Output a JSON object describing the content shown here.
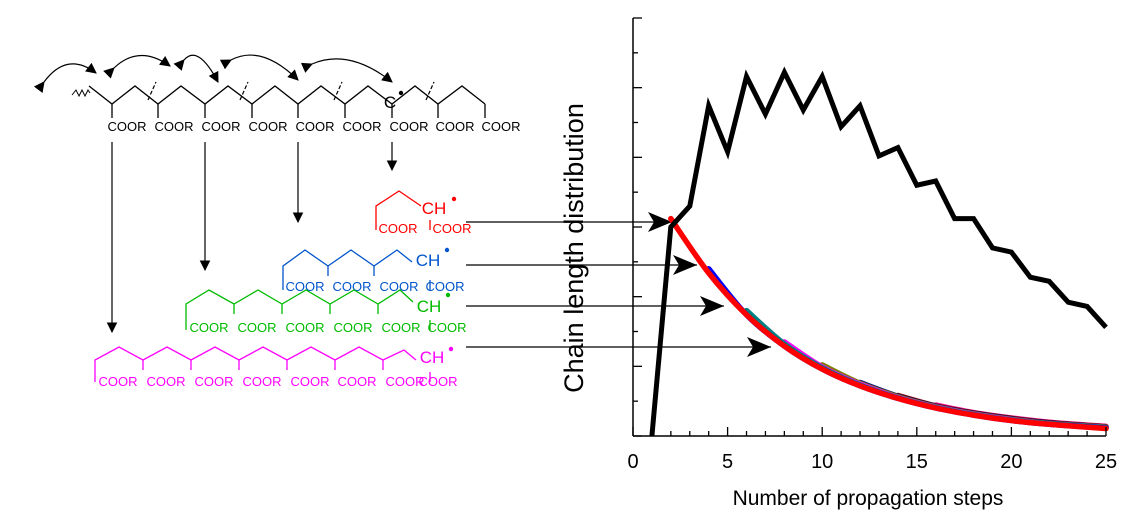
{
  "scheme": {
    "ester_label": "COOR",
    "radical_label": "CH",
    "backbone_radical_label": "C",
    "colors": {
      "backbone": "#000000",
      "dimer": "#ff0000",
      "tetramer": "#0055cc",
      "hexamer": "#00bb00",
      "octamer": "#ff00ff"
    }
  },
  "chart_data": {
    "type": "line",
    "title": "",
    "xlabel": "Number of propagation steps",
    "ylabel": "Chain length distribution",
    "xlim": [
      0,
      25
    ],
    "ylim": [
      0,
      1
    ],
    "x_ticks": [
      0,
      5,
      10,
      15,
      20,
      25
    ],
    "x_tick_labels": [
      "0",
      "5",
      "10",
      "15",
      "20",
      "25"
    ],
    "y_tick_labels_shown": false,
    "grid": false,
    "legend": "none",
    "series": [
      {
        "color": "#000000",
        "x": [
          1,
          2,
          3,
          4,
          5,
          6,
          7,
          8,
          9,
          10,
          11,
          12,
          13,
          14,
          15,
          16,
          17,
          18,
          19,
          20,
          21,
          22,
          23,
          24,
          25
        ],
        "y": [
          0.0,
          0.5,
          0.55,
          0.79,
          0.68,
          0.86,
          0.77,
          0.87,
          0.78,
          0.86,
          0.74,
          0.79,
          0.67,
          0.69,
          0.6,
          0.61,
          0.52,
          0.52,
          0.45,
          0.44,
          0.38,
          0.37,
          0.32,
          0.31,
          0.26
        ]
      },
      {
        "color": "#ff0000",
        "x": [
          2,
          4,
          6,
          8,
          10,
          12,
          14,
          16,
          18,
          20,
          22,
          25
        ],
        "y": [
          0.52,
          0.39,
          0.29,
          0.215,
          0.16,
          0.12,
          0.09,
          0.067,
          0.05,
          0.037,
          0.028,
          0.018
        ]
      },
      {
        "color": "#0000ff",
        "x": [
          4,
          6,
          8,
          10,
          12,
          14,
          16,
          18,
          20,
          22,
          25
        ],
        "y": [
          0.4,
          0.29,
          0.215,
          0.16,
          0.12,
          0.09,
          0.067,
          0.05,
          0.037,
          0.028,
          0.019
        ]
      },
      {
        "color": "#008080",
        "x": [
          6,
          8,
          10,
          12,
          14,
          16,
          18,
          20,
          22,
          25
        ],
        "y": [
          0.3,
          0.22,
          0.163,
          0.122,
          0.091,
          0.068,
          0.051,
          0.038,
          0.029,
          0.02
        ]
      },
      {
        "color": "#ff00ff",
        "x": [
          8,
          10,
          12,
          14,
          16,
          18,
          20,
          22,
          25
        ],
        "y": [
          0.225,
          0.165,
          0.124,
          0.092,
          0.069,
          0.052,
          0.039,
          0.029,
          0.02
        ]
      },
      {
        "color": "#808000",
        "x": [
          10,
          12,
          14,
          16,
          18,
          20,
          22,
          25
        ],
        "y": [
          0.17,
          0.126,
          0.094,
          0.07,
          0.053,
          0.04,
          0.03,
          0.021
        ]
      },
      {
        "color": "#000080",
        "x": [
          12,
          14,
          16,
          18,
          20,
          22,
          25
        ],
        "y": [
          0.128,
          0.095,
          0.071,
          0.054,
          0.041,
          0.031,
          0.021
        ]
      },
      {
        "color": "#800000",
        "x": [
          14,
          16,
          18,
          20,
          22,
          25
        ],
        "y": [
          0.097,
          0.072,
          0.055,
          0.042,
          0.032,
          0.022
        ]
      },
      {
        "color": "#ff1493",
        "x": [
          16,
          18,
          20,
          22,
          25
        ],
        "y": [
          0.074,
          0.056,
          0.043,
          0.033,
          0.023
        ]
      }
    ]
  }
}
